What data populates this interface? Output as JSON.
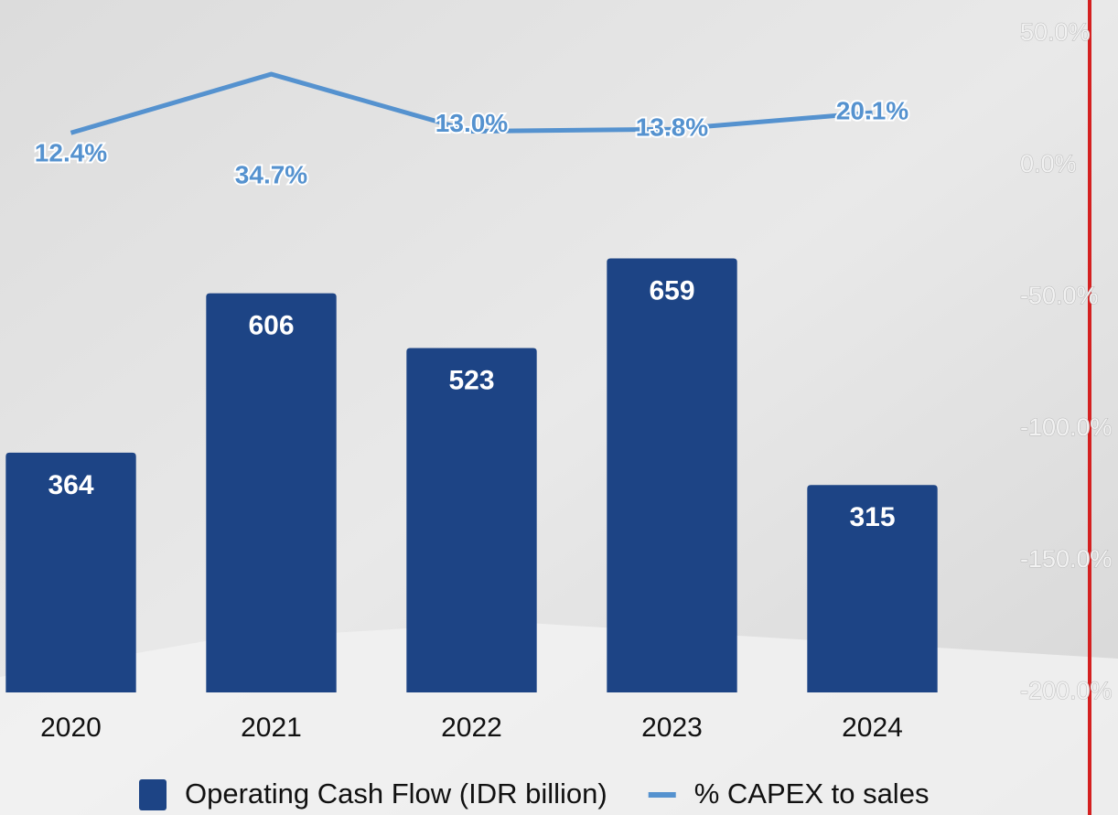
{
  "chart_data": {
    "type": "combo",
    "categories": [
      "2020",
      "2021",
      "2022",
      "2023",
      "2024"
    ],
    "series": [
      {
        "name": "Operating Cash Flow (IDR billion)",
        "type": "bar",
        "color": "#1d4485",
        "values": [
          364,
          606,
          523,
          659,
          315
        ]
      },
      {
        "name": "% CAPEX to sales",
        "type": "line",
        "axis": "y2",
        "color": "#5592cf",
        "values": [
          12.4,
          34.7,
          13.0,
          13.8,
          20.1
        ],
        "value_labels": [
          "12.4%",
          "34.7%",
          "13.0%",
          "13.8%",
          "20.1%"
        ]
      }
    ],
    "ylim": [
      0,
      1000
    ],
    "y2lim": [
      -200,
      50
    ],
    "y2ticks": [
      {
        "value": 50,
        "label": "50.0%"
      },
      {
        "value": 0,
        "label": "0.0%"
      },
      {
        "value": -50,
        "label": "-50.0%"
      },
      {
        "value": -100,
        "label": "-100.0%"
      },
      {
        "value": -150,
        "label": "-150.0%"
      },
      {
        "value": -200,
        "label": "-200.0%"
      }
    ],
    "grid": false,
    "legend": "bottom"
  }
}
